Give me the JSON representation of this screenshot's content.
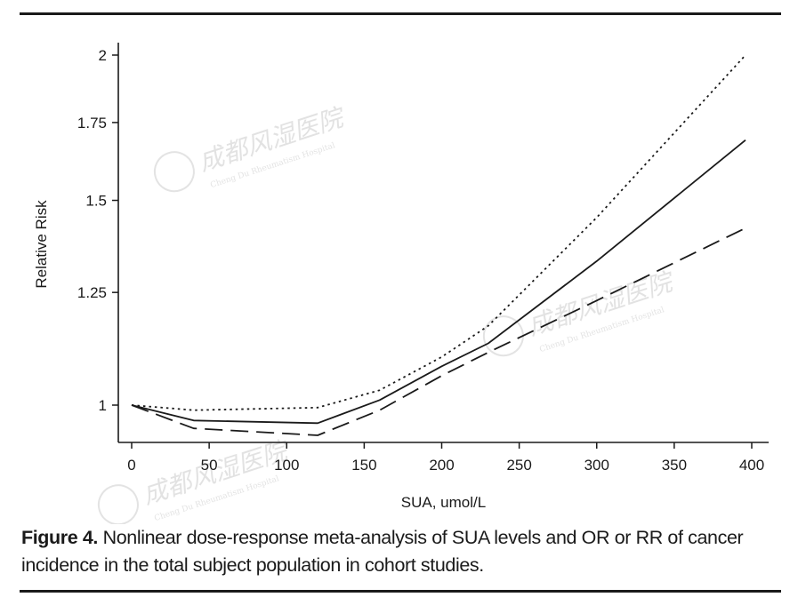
{
  "chart_data": {
    "type": "line",
    "xlabel": "SUA, umol/L",
    "ylabel": "Relative Risk",
    "xlim": [
      0,
      400
    ],
    "ylim": [
      0.93,
      2.05
    ],
    "y_scale": "log",
    "xticks": [
      0,
      50,
      100,
      150,
      200,
      250,
      300,
      350,
      400
    ],
    "xtick_labels": [
      "0",
      "50",
      "100",
      "150",
      "200",
      "250",
      "300",
      "350",
      "400"
    ],
    "yticks": [
      1,
      1.25,
      1.5,
      1.75,
      2
    ],
    "ytick_labels": [
      "1",
      "1.25",
      "1.5",
      "1.75",
      "2"
    ],
    "grid": false,
    "series": [
      {
        "style": "dotted",
        "color": "#1a1a1a",
        "x": [
          0,
          40,
          120,
          160,
          200,
          230,
          300,
          396
        ],
        "y": [
          1.0,
          0.99,
          0.995,
          1.03,
          1.1,
          1.17,
          1.45,
          2.0
        ]
      },
      {
        "style": "solid",
        "color": "#1a1a1a",
        "x": [
          0,
          40,
          120,
          160,
          200,
          230,
          300,
          396
        ],
        "y": [
          1.0,
          0.97,
          0.965,
          1.01,
          1.08,
          1.13,
          1.33,
          1.69
        ]
      },
      {
        "style": "dashed",
        "color": "#1a1a1a",
        "x": [
          0,
          40,
          120,
          160,
          200,
          230,
          300,
          396
        ],
        "y": [
          1.0,
          0.955,
          0.942,
          0.99,
          1.06,
          1.11,
          1.23,
          1.42
        ]
      }
    ]
  },
  "caption": {
    "label": "Figure 4.",
    "text": " Nonlinear dose-response meta-analysis of SUA levels and OR or RR of cancer incidence in the total subject population in cohort studies."
  },
  "watermark": {
    "text": "成都风湿医院",
    "subtext": "Cheng Du Rheumatism Hospital"
  }
}
